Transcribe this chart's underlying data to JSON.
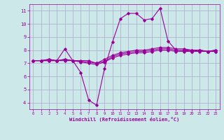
{
  "xlabel": "Windchill (Refroidissement éolien,°C)",
  "bg_color": "#cce8e8",
  "grid_color": "#aaaacc",
  "line_color": "#990099",
  "xlim": [
    -0.5,
    23.5
  ],
  "ylim": [
    3.5,
    11.5
  ],
  "xticks": [
    0,
    1,
    2,
    3,
    4,
    5,
    6,
    7,
    8,
    9,
    10,
    11,
    12,
    13,
    14,
    15,
    16,
    17,
    18,
    19,
    20,
    21,
    22,
    23
  ],
  "yticks": [
    4,
    5,
    6,
    7,
    8,
    9,
    10,
    11
  ],
  "series1_x": [
    0,
    1,
    2,
    3,
    4,
    5,
    6,
    7,
    8,
    9,
    10,
    11,
    12,
    13,
    14,
    15,
    16,
    17,
    18,
    19,
    20,
    21,
    22,
    23
  ],
  "series1_y": [
    7.2,
    7.2,
    7.3,
    7.2,
    8.1,
    7.2,
    6.3,
    4.2,
    3.8,
    6.6,
    8.6,
    10.4,
    10.8,
    10.8,
    10.3,
    10.4,
    11.2,
    8.7,
    8.0,
    8.0,
    7.9,
    8.0,
    7.9,
    8.0
  ],
  "series2_x": [
    0,
    1,
    2,
    3,
    4,
    5,
    6,
    7,
    8,
    9,
    10,
    11,
    12,
    13,
    14,
    15,
    16,
    17,
    18,
    19,
    20,
    21,
    22,
    23
  ],
  "series2_y": [
    7.2,
    7.2,
    7.3,
    7.2,
    7.3,
    7.2,
    7.2,
    7.2,
    7.0,
    7.3,
    7.6,
    7.8,
    7.9,
    8.0,
    8.0,
    8.1,
    8.2,
    8.2,
    8.1,
    8.1,
    8.0,
    8.0,
    7.9,
    8.0
  ],
  "series3_x": [
    0,
    1,
    2,
    3,
    4,
    5,
    6,
    7,
    8,
    9,
    10,
    11,
    12,
    13,
    14,
    15,
    16,
    17,
    18,
    19,
    20,
    21,
    22,
    23
  ],
  "series3_y": [
    7.2,
    7.2,
    7.2,
    7.2,
    7.2,
    7.2,
    7.1,
    7.0,
    6.9,
    7.1,
    7.4,
    7.6,
    7.7,
    7.8,
    7.8,
    7.9,
    8.0,
    8.0,
    7.9,
    7.9,
    7.9,
    7.9,
    7.9,
    7.9
  ],
  "series4_x": [
    0,
    1,
    2,
    3,
    4,
    5,
    6,
    7,
    8,
    9,
    10,
    11,
    12,
    13,
    14,
    15,
    16,
    17,
    18,
    19,
    20,
    21,
    22,
    23
  ],
  "series4_y": [
    7.2,
    7.2,
    7.2,
    7.2,
    7.3,
    7.2,
    7.15,
    7.1,
    7.0,
    7.15,
    7.5,
    7.7,
    7.8,
    7.9,
    7.9,
    8.0,
    8.1,
    8.1,
    8.0,
    8.0,
    8.0,
    8.0,
    7.9,
    7.9
  ]
}
